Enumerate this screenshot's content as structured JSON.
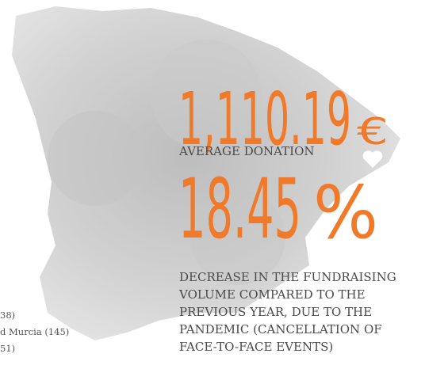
{
  "stats": [
    {
      "value": "1,110.19",
      "unit": "€",
      "label": "AVERAGE DONATION"
    },
    {
      "value": "18.45",
      "unit": "%",
      "label_lines": [
        "DECREASE IN THE FUNDRAISING",
        "VOLUME COMPARED TO THE",
        "PREVIOUS YEAR, DUE TO THE",
        "PANDEMIC (CANCELLATION OF",
        "FACE-TO-FACE EVENTS)"
      ]
    }
  ],
  "side_list": [
    "38)",
    "d Murcia (145)",
    "51)"
  ]
}
